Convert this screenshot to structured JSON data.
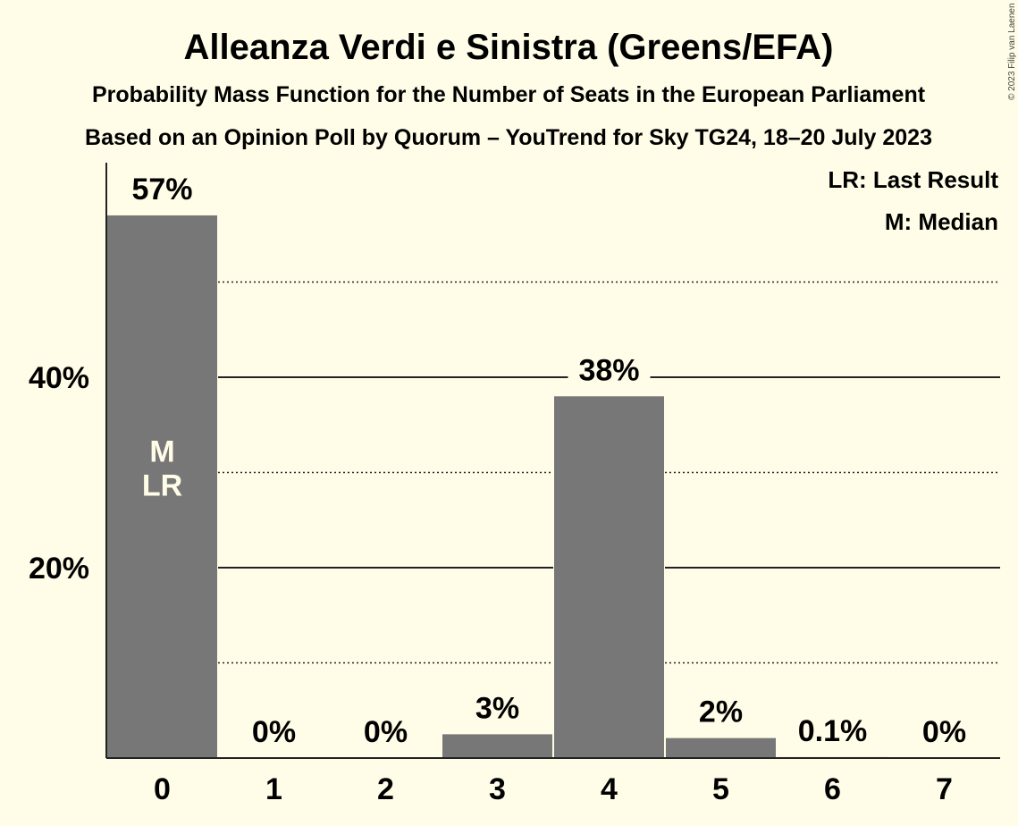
{
  "chart_data": {
    "type": "bar",
    "title": "Alleanza Verdi e Sinistra (Greens/EFA)",
    "subtitle": "Probability Mass Function for the Number of Seats in the European Parliament",
    "subtitle2": "Based on an Opinion Poll by Quorum – YouTrend for Sky TG24, 18–20 July 2023",
    "categories": [
      "0",
      "1",
      "2",
      "3",
      "4",
      "5",
      "6",
      "7"
    ],
    "values": [
      57,
      0,
      0,
      2.5,
      38,
      2.1,
      0.1,
      0
    ],
    "data_labels": [
      "57%",
      "0%",
      "0%",
      "3%",
      "38%",
      "2%",
      "0.1%",
      "0%"
    ],
    "y_ticks": [
      20,
      40
    ],
    "y_tick_labels": [
      "20%",
      "40%"
    ],
    "y_minor_ticks": [
      10,
      30,
      50
    ],
    "ylim": [
      0,
      62
    ],
    "grid": true,
    "bar_markers": [
      {
        "index": 0,
        "lines": [
          "M",
          "LR"
        ]
      }
    ],
    "legend": {
      "placement": "top-right",
      "items": [
        "LR: Last Result",
        "M: Median"
      ]
    },
    "bar_color": "#777777",
    "copyright": "© 2023 Filip van Laenen"
  }
}
